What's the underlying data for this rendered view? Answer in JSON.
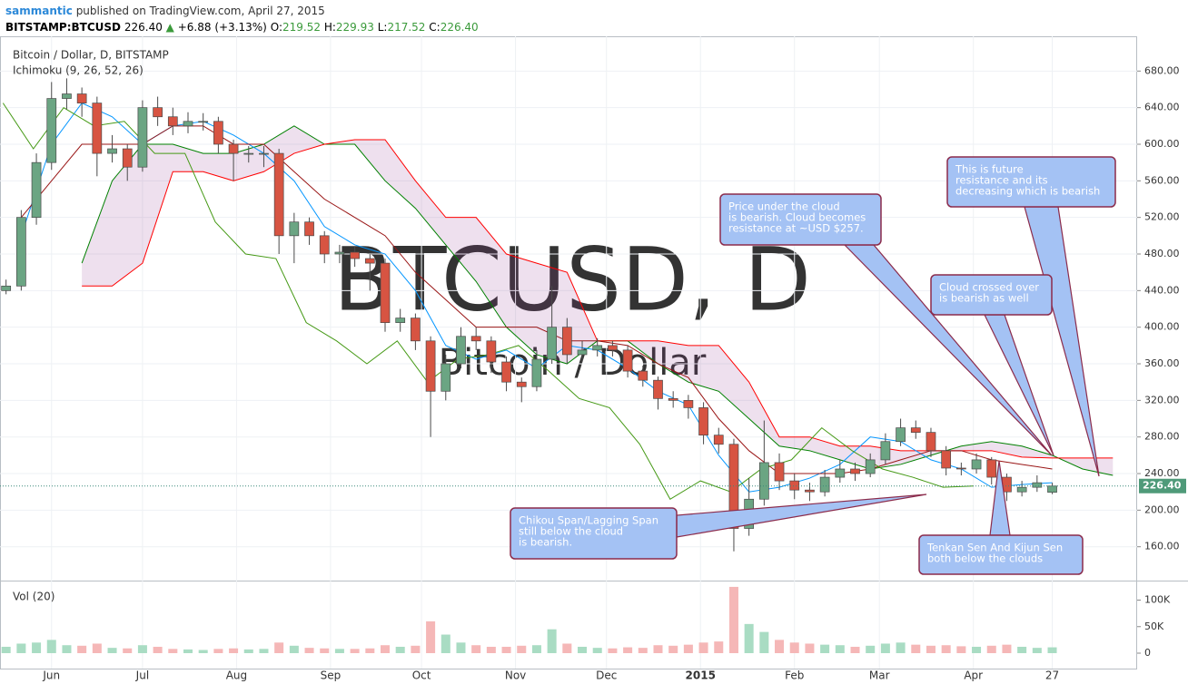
{
  "header": {
    "user": "sammantic",
    "published": "published on TradingView.com, April 27, 2015",
    "symbol": "BITSTAMP:BTCUSD",
    "last": "226.40",
    "change": "+6.88 (+3.13%)",
    "o_label": "O:",
    "open": "219.52",
    "h_label": "H:",
    "high": "229.93",
    "l_label": "L:",
    "low": "217.52",
    "c_label": "C:",
    "close": "226.40"
  },
  "chart_data": {
    "type": "candlestick",
    "title": "Bitcoin / Dollar, D, BITSTAMP",
    "indicator": "Ichimoku (9, 26, 52, 26)",
    "watermark": "BTCUSD, D",
    "watermark_sub": "Bitcoin / Dollar",
    "x": [
      -15,
      -10,
      -5,
      0,
      5,
      10,
      15,
      20,
      25,
      30,
      35,
      40,
      45,
      50,
      55,
      60,
      65,
      70,
      75,
      80,
      85,
      90,
      95,
      100,
      105,
      110,
      115,
      120,
      125,
      130,
      135,
      140,
      145,
      150,
      155,
      160,
      165,
      170,
      175,
      180,
      185,
      190,
      195,
      200,
      205,
      210,
      215,
      220,
      225,
      230,
      235,
      240,
      245,
      250,
      255,
      260,
      265,
      270,
      275,
      280,
      285,
      290,
      295,
      300,
      305,
      310,
      315,
      320,
      325,
      330
    ],
    "open": [
      440,
      445,
      520,
      580,
      650,
      655,
      645,
      590,
      595,
      575,
      640,
      630,
      620,
      625,
      625,
      600,
      590,
      590,
      590,
      500,
      515,
      500,
      480,
      482,
      475,
      470,
      405,
      410,
      385,
      330,
      360,
      390,
      385,
      362,
      340,
      335,
      365,
      400,
      370,
      375,
      380,
      375,
      352,
      342,
      322,
      320,
      312,
      282,
      272,
      180,
      212,
      252,
      232,
      222,
      220,
      236,
      245,
      240,
      255,
      275,
      290,
      285,
      265,
      246,
      245,
      255,
      236,
      220,
      225,
      219.52
    ],
    "high": [
      452,
      528,
      590,
      668,
      672,
      662,
      652,
      610,
      600,
      648,
      652,
      640,
      635,
      634,
      630,
      605,
      598,
      598,
      595,
      525,
      520,
      505,
      490,
      488,
      480,
      475,
      420,
      415,
      390,
      370,
      400,
      400,
      390,
      368,
      345,
      375,
      445,
      410,
      385,
      388,
      385,
      380,
      358,
      346,
      330,
      326,
      318,
      290,
      278,
      235,
      298,
      262,
      240,
      230,
      244,
      255,
      252,
      262,
      284,
      300,
      298,
      290,
      270,
      252,
      262,
      258,
      240,
      232,
      238,
      229.93
    ],
    "low": [
      436,
      440,
      512,
      572,
      638,
      630,
      565,
      580,
      560,
      570,
      620,
      610,
      612,
      615,
      590,
      560,
      580,
      575,
      480,
      470,
      490,
      470,
      470,
      466,
      440,
      395,
      395,
      375,
      280,
      320,
      355,
      375,
      350,
      330,
      318,
      330,
      360,
      360,
      362,
      368,
      368,
      345,
      335,
      310,
      312,
      300,
      272,
      262,
      155,
      172,
      205,
      222,
      212,
      210,
      215,
      230,
      232,
      236,
      250,
      270,
      278,
      258,
      238,
      238,
      240,
      228,
      210,
      215,
      220,
      217.52
    ],
    "close": [
      445,
      520,
      580,
      650,
      655,
      645,
      590,
      595,
      575,
      640,
      630,
      620,
      625,
      625,
      600,
      590,
      590,
      590,
      500,
      515,
      500,
      480,
      482,
      475,
      470,
      405,
      410,
      385,
      330,
      360,
      390,
      385,
      362,
      340,
      335,
      365,
      400,
      370,
      375,
      380,
      375,
      352,
      342,
      322,
      320,
      312,
      282,
      272,
      180,
      212,
      252,
      232,
      222,
      220,
      236,
      245,
      240,
      255,
      275,
      290,
      285,
      265,
      246,
      245,
      255,
      236,
      220,
      225,
      230,
      226.4
    ],
    "up_color": "#6ba583",
    "down_color": "#d75442",
    "xlim": [
      -17,
      358
    ],
    "xticks": [
      {
        "value": 0,
        "label": "Jun"
      },
      {
        "value": 30,
        "label": "Jul"
      },
      {
        "value": 61,
        "label": "Aug"
      },
      {
        "value": 92,
        "label": "Sep"
      },
      {
        "value": 122,
        "label": "Oct"
      },
      {
        "value": 153,
        "label": "Nov"
      },
      {
        "value": 183,
        "label": "Dec"
      },
      {
        "value": 214,
        "label": "2015"
      },
      {
        "value": 245,
        "label": "Feb"
      },
      {
        "value": 273,
        "label": "Mar"
      },
      {
        "value": 304,
        "label": "Apr"
      },
      {
        "value": 330,
        "label": "27"
      }
    ],
    "ylim": [
      125,
      718
    ],
    "yticks": [
      {
        "value": 160,
        "label": "160.00"
      },
      {
        "value": 200,
        "label": "200.00"
      },
      {
        "value": 240,
        "label": "240.00"
      },
      {
        "value": 280,
        "label": "280.00"
      },
      {
        "value": 320,
        "label": "320.00"
      },
      {
        "value": 360,
        "label": "360.00"
      },
      {
        "value": 400,
        "label": "400.00"
      },
      {
        "value": 440,
        "label": "440.00"
      },
      {
        "value": 480,
        "label": "480.00"
      },
      {
        "value": 520,
        "label": "520.00"
      },
      {
        "value": 560,
        "label": "560.00"
      },
      {
        "value": 600,
        "label": "600.00"
      },
      {
        "value": 640,
        "label": "640.00"
      },
      {
        "value": 680,
        "label": "680.00"
      }
    ],
    "grid": true,
    "last_price": {
      "value": 226.4,
      "label": "226.40"
    },
    "cloud_color": "rgba(150,60,150,0.16)",
    "lines": [
      {
        "color": "#0496ff",
        "x": [
          -10,
          0,
          10,
          20,
          30,
          40,
          50,
          60,
          70,
          80,
          90,
          100,
          110,
          120,
          130,
          140,
          150,
          160,
          170,
          180,
          190,
          200,
          210,
          220,
          230,
          240,
          250,
          260,
          270,
          280,
          290,
          300,
          310,
          320,
          330
        ],
        "values": [
          500,
          600,
          645,
          630,
          600,
          620,
          625,
          610,
          590,
          560,
          510,
          490,
          480,
          440,
          380,
          365,
          375,
          355,
          380,
          375,
          355,
          330,
          315,
          260,
          220,
          225,
          235,
          250,
          280,
          275,
          255,
          245,
          225,
          228,
          230
        ]
      },
      {
        "color": "#991515",
        "x": [
          -10,
          0,
          10,
          20,
          30,
          40,
          50,
          60,
          70,
          80,
          90,
          100,
          110,
          120,
          130,
          140,
          150,
          160,
          170,
          180,
          190,
          200,
          210,
          220,
          230,
          240,
          250,
          260,
          270,
          280,
          290,
          300,
          310,
          320,
          330
        ],
        "values": [
          520,
          560,
          600,
          600,
          600,
          620,
          620,
          600,
          600,
          570,
          540,
          520,
          500,
          460,
          430,
          400,
          400,
          400,
          385,
          385,
          380,
          360,
          345,
          300,
          265,
          240,
          240,
          240,
          245,
          255,
          265,
          265,
          255,
          250,
          245
        ]
      },
      {
        "color": "#459915",
        "x": [
          -16,
          -6,
          4,
          14,
          24,
          34,
          44,
          54,
          64,
          74,
          84,
          94,
          104,
          114,
          124,
          134,
          144,
          154,
          164,
          174,
          184,
          194,
          204,
          214,
          224,
          234,
          244,
          254,
          264,
          274,
          284,
          294,
          304
        ],
        "values": [
          645,
          595,
          640,
          620,
          625,
          590,
          590,
          515,
          480,
          475,
          405,
          385,
          360,
          385,
          340,
          365,
          370,
          380,
          352,
          322,
          312,
          272,
          212,
          232,
          220,
          245,
          255,
          290,
          265,
          245,
          236,
          225,
          226.4
        ]
      }
    ],
    "span_x": [
      10,
      20,
      30,
      40,
      50,
      60,
      70,
      80,
      90,
      100,
      110,
      120,
      130,
      140,
      150,
      160,
      170,
      180,
      190,
      200,
      210,
      220,
      230,
      240,
      250,
      260,
      270,
      280,
      290,
      300,
      310,
      320,
      330,
      340,
      350
    ],
    "span_a": {
      "color": "#008000",
      "values": [
        470,
        560,
        600,
        600,
        590,
        590,
        600,
        620,
        600,
        600,
        560,
        530,
        490,
        450,
        400,
        370,
        360,
        385,
        385,
        360,
        340,
        330,
        300,
        270,
        265,
        255,
        245,
        250,
        260,
        270,
        275,
        270,
        260,
        245,
        238
      ]
    },
    "span_b": {
      "color": "#ff0000",
      "values": [
        445,
        445,
        470,
        570,
        570,
        560,
        570,
        590,
        600,
        605,
        605,
        560,
        520,
        520,
        480,
        470,
        460,
        385,
        385,
        385,
        380,
        380,
        340,
        280,
        280,
        270,
        270,
        265,
        265,
        265,
        265,
        258,
        257,
        257,
        257
      ]
    },
    "volume": {
      "label": "Vol (20)",
      "up_color": "#a9dcc3",
      "down_color": "#f5b7b7",
      "values": [
        12000,
        18000,
        20000,
        25000,
        15000,
        14000,
        18000,
        10000,
        9000,
        15000,
        12000,
        8000,
        7000,
        6000,
        8000,
        9000,
        7000,
        8000,
        20000,
        14000,
        10000,
        9000,
        8000,
        8000,
        9000,
        15000,
        12000,
        14000,
        60000,
        35000,
        20000,
        15000,
        12000,
        12000,
        14000,
        15000,
        45000,
        18000,
        12000,
        10000,
        9000,
        11000,
        10000,
        15000,
        14000,
        16000,
        20000,
        22000,
        125000,
        55000,
        40000,
        25000,
        20000,
        18000,
        16000,
        15000,
        12000,
        14000,
        18000,
        20000,
        16000,
        14000,
        15000,
        13000,
        12000,
        14000,
        16000,
        12000,
        10000,
        11000
      ],
      "ylim": [
        0,
        130000
      ],
      "yticks": [
        0,
        {
          "value": 50000,
          "label": "50K"
        },
        {
          "value": 100000,
          "label": "100K"
        }
      ]
    },
    "annotations": [
      {
        "lines": [
          "Price under the cloud",
          "is bearish. Cloud becomes",
          "resistance at ~USD $257."
        ]
      },
      {
        "lines": [
          "This is future",
          "resistance and its",
          "decreasing which is bearish"
        ]
      },
      {
        "lines": [
          "Cloud crossed over",
          "is bearish as well"
        ]
      },
      {
        "lines": [
          "Chikou Span/Lagging Span",
          "still below the cloud",
          "is bearish."
        ]
      },
      {
        "lines": [
          "Tenkan Sen And Kijun Sen",
          "both below the clouds"
        ]
      }
    ]
  }
}
